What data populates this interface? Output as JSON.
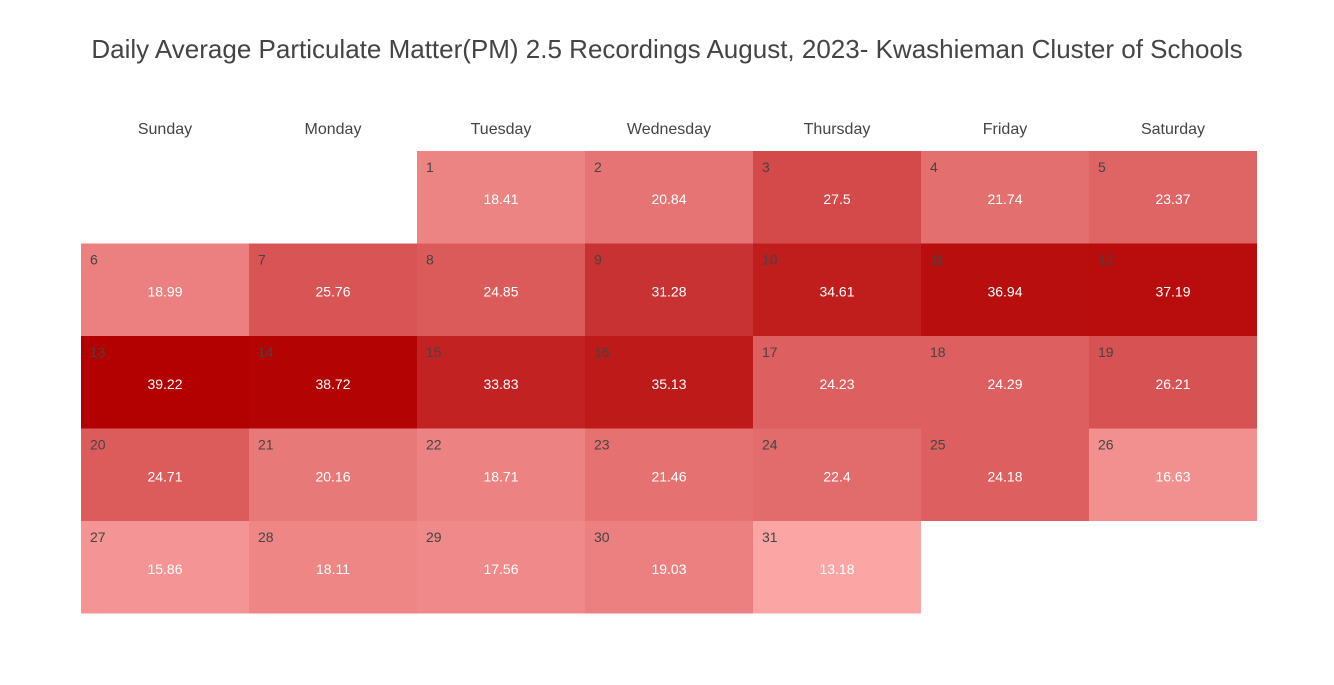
{
  "chart_data": {
    "type": "heatmap",
    "title": "Daily Average Particulate Matter(PM) 2.5 Recordings August, 2023- Kwashieman Cluster of Schools",
    "weekdays": [
      "Sunday",
      "Monday",
      "Tuesday",
      "Wednesday",
      "Thursday",
      "Friday",
      "Saturday"
    ],
    "first_weekday_index": 2,
    "color_scale": {
      "low_color": "#fca5a5",
      "high_color": "#b30000",
      "min": 13.18,
      "max": 39.22
    },
    "days": [
      {
        "day": "1",
        "value": 18.41
      },
      {
        "day": "2",
        "value": 20.84
      },
      {
        "day": "3",
        "value": 27.5
      },
      {
        "day": "4",
        "value": 21.74
      },
      {
        "day": "5",
        "value": 23.37
      },
      {
        "day": "6",
        "value": 18.99
      },
      {
        "day": "7",
        "value": 25.76
      },
      {
        "day": "8",
        "value": 24.85
      },
      {
        "day": "9",
        "value": 31.28
      },
      {
        "day": "10",
        "value": 34.61
      },
      {
        "day": "11",
        "value": 36.94
      },
      {
        "day": "12",
        "value": 37.19
      },
      {
        "day": "13",
        "value": 39.22
      },
      {
        "day": "14",
        "value": 38.72
      },
      {
        "day": "15",
        "value": 33.83
      },
      {
        "day": "16",
        "value": 35.13
      },
      {
        "day": "17",
        "value": 24.23
      },
      {
        "day": "18",
        "value": 24.29
      },
      {
        "day": "19",
        "value": 26.21
      },
      {
        "day": "20",
        "value": 24.71
      },
      {
        "day": "21",
        "value": 20.16
      },
      {
        "day": "22",
        "value": 18.71
      },
      {
        "day": "23",
        "value": 21.46
      },
      {
        "day": "24",
        "value": 22.4
      },
      {
        "day": "25",
        "value": 24.18
      },
      {
        "day": "26",
        "value": 16.63
      },
      {
        "day": "27",
        "value": 15.86
      },
      {
        "day": "28",
        "value": 18.11
      },
      {
        "day": "29",
        "value": 17.56
      },
      {
        "day": "30",
        "value": 19.03
      },
      {
        "day": "31",
        "value": 13.18
      }
    ]
  }
}
